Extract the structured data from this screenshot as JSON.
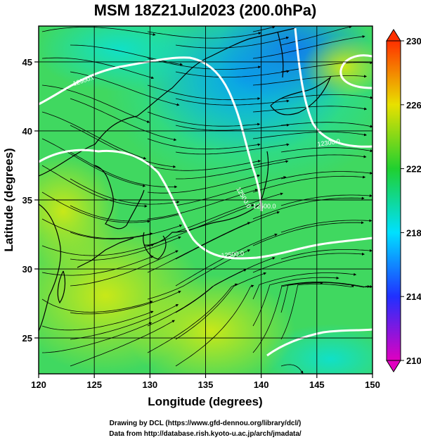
{
  "title": "MSM 18Z21Jul2023 (200.0hPa)",
  "xaxis": {
    "label": "Longitude (degrees)",
    "range": [
      120,
      150
    ],
    "ticks": [
      "120",
      "125",
      "130",
      "135",
      "140",
      "145",
      "150"
    ]
  },
  "yaxis": {
    "label": "Latitude  (degrees)",
    "range": [
      22.4,
      47.6
    ],
    "ticks": [
      "25",
      "30",
      "35",
      "40",
      "45"
    ]
  },
  "colorbar": {
    "range": [
      210,
      230
    ],
    "ticks": [
      "210",
      "214",
      "218",
      "222",
      "226",
      "230"
    ],
    "colors": [
      "#e000c0",
      "#2030ff",
      "#00e0ff",
      "#20d030",
      "#e8e000",
      "#ff3000"
    ]
  },
  "contours": {
    "color": "#ffffff",
    "labels": [
      "12300.0",
      "12300.0",
      "12500.0",
      "12500.0",
      "12500.0"
    ]
  },
  "footer": {
    "line1": "Drawing by DCL (https://www.gfd-dennou.org/library/dcl/)",
    "line2": "Data from http://database.rish.kyoto-u.ac.jp/arch/jmadata/"
  }
}
